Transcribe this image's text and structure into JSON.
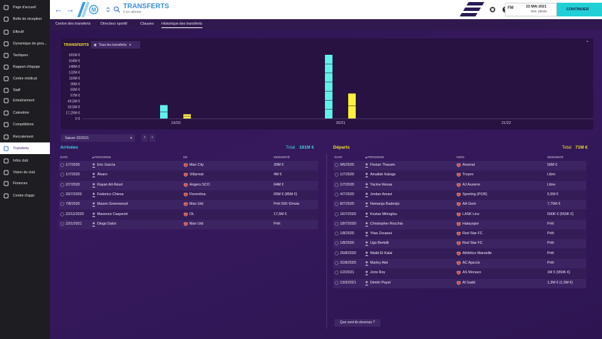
{
  "sidebar": {
    "items": [
      {
        "label": "Page d'accueil",
        "icon": "home-icon"
      },
      {
        "label": "Boîte de réception",
        "icon": "inbox-icon"
      },
      {
        "label": "Effectif",
        "icon": "squad-icon"
      },
      {
        "label": "Dynamique de grou...",
        "icon": "dynamics-icon"
      },
      {
        "label": "Tactiques",
        "icon": "tactics-icon"
      },
      {
        "label": "Rapport d'équipe",
        "icon": "report-icon"
      },
      {
        "label": "Centre médical",
        "icon": "medical-icon"
      },
      {
        "label": "Staff",
        "icon": "staff-icon"
      },
      {
        "label": "Entraînement",
        "icon": "training-icon"
      },
      {
        "label": "Calendrier",
        "icon": "calendar-icon"
      },
      {
        "label": "Compétitions",
        "icon": "trophy-icon"
      },
      {
        "label": "Recrutement",
        "icon": "scouting-icon"
      },
      {
        "label": "Transferts",
        "icon": "transfers-icon"
      },
      {
        "label": "Infos club",
        "icon": "club-info-icon"
      },
      {
        "label": "Vision du club",
        "icon": "vision-icon"
      },
      {
        "label": "Finances",
        "icon": "finances-icon"
      },
      {
        "label": "Centre d'appr.",
        "icon": "academy-icon"
      }
    ],
    "active_index": 12
  },
  "header": {
    "title": "TRANSFERTS",
    "subtitle": "0 en attente",
    "date": "23 MAI 2021",
    "time": "Dim 18h45",
    "fm_badge": "FM",
    "continue_label": "CONTINUER"
  },
  "subtabs": [
    "Centre des transferts",
    "Directeur sportif",
    "Clauses",
    "Historique des transferts"
  ],
  "subtab_active": 3,
  "chart_panel": {
    "title": "TRANSFERTS",
    "filter_label": "Tous les transferts"
  },
  "chart_data": {
    "type": "bar",
    "categories": [
      "19/20",
      "20/21",
      "21/22"
    ],
    "series": [
      {
        "name": "Arrivées",
        "color": "#5ff2ec",
        "values": [
          38,
          181,
          0
        ]
      },
      {
        "name": "Départs",
        "color": "#fff23a",
        "values": [
          12,
          71,
          0
        ]
      }
    ],
    "yticks": [
      "181M €",
      "164M €",
      "148M €",
      "132M €",
      "116M €",
      "99M €",
      "83M €",
      "67M €",
      "49,5M €",
      "33,5M €",
      "17,25M €",
      "0 €"
    ],
    "ylim": [
      0,
      181
    ]
  },
  "season_select": "Saison 2020/21",
  "arrivals": {
    "title": "Arrivées",
    "total_label": "Total",
    "total_value": "181M €",
    "columns": [
      "Date",
      "Personne",
      "De",
      "Indemnité"
    ],
    "rows": [
      {
        "date": "1/7/2020",
        "person": "Eric García",
        "club": "Man City",
        "fee": "30M €"
      },
      {
        "date": "1/7/2020",
        "person": "Álvaro",
        "club": "Villarreal",
        "fee": "4M €"
      },
      {
        "date": "2/7/2020",
        "person": "Rayan Aït-Nouri",
        "club": "Angers SCO",
        "fee": "64M €"
      },
      {
        "date": "20/7/2020",
        "person": "Federico Chiesa",
        "club": "Fiorentina",
        "fee": "65M € (85M €)"
      },
      {
        "date": "7/8/2020",
        "person": "Mason Greenwood",
        "club": "Man Utd",
        "fee": "Prêt 55K €/mois"
      },
      {
        "date": "22/12/2020",
        "person": "Maxence Caqueret",
        "club": "OL",
        "fee": "17,5M €"
      },
      {
        "date": "22/1/2021",
        "person": "Diogo Dalot",
        "club": "Man Utd",
        "fee": "Prêt"
      }
    ]
  },
  "departures": {
    "title": "Départs",
    "total_label": "Total",
    "total_value": "71M €",
    "columns": [
      "Date",
      "Personne",
      "Vers",
      "Indemnité"
    ],
    "rows": [
      {
        "date": "9/6/2020",
        "person": "Florian Thauvin",
        "club": "Arsenal",
        "fee": "56M €"
      },
      {
        "date": "1/7/2020",
        "person": "Amallah Kaloga",
        "club": "Troyes",
        "fee": "Libre"
      },
      {
        "date": "1/7/2020",
        "person": "Yacine Ressa",
        "club": "AJ Auxerre",
        "fee": "Libre"
      },
      {
        "date": "4/7/2020",
        "person": "Jordan Amavi",
        "club": "Sporting (POR)",
        "fee": "5,5M €"
      },
      {
        "date": "8/7/2020",
        "person": "Nemanja Radonjic",
        "club": "AA Gent",
        "fee": "7,75M €"
      },
      {
        "date": "16/7/2020",
        "person": "Kostas Mitroglou",
        "club": "LASK Linz",
        "fee": "500K € (650K €)"
      },
      {
        "date": "18/7/2020",
        "person": "Christopher Rocchia",
        "club": "Hatayspor",
        "fee": "Prêt"
      },
      {
        "date": "1/8/2020",
        "person": "Yiias Zouaoui",
        "club": "Red Star FC",
        "fee": "Prêt"
      },
      {
        "date": "1/8/2020",
        "person": "Ugo Bertelli",
        "club": "Red Star FC",
        "fee": "Prêt"
      },
      {
        "date": "25/8/2020",
        "person": "Walid El Kalai",
        "club": "Athlético Marseille",
        "fee": "Prêt"
      },
      {
        "date": "31/8/2020",
        "person": "Marley Aké",
        "club": "AC Ajaccio",
        "fee": "Prêt"
      },
      {
        "date": "1/2/2021",
        "person": "Joris Roy",
        "club": "AS Monaco",
        "fee": "1M € (950K €)"
      },
      {
        "date": "13/3/2021",
        "person": "Dimitri Payet",
        "club": "Al Sadd",
        "fee": "1,3M € (1,5M €)"
      }
    ]
  },
  "footer_button": "Que sont-ils devenus ?",
  "colors": {
    "accent_cyan": "#3ed2e6",
    "accent_yellow": "#f3e02a",
    "sidebar_bg": "#1e1e22",
    "panel_bg": "#271241"
  }
}
